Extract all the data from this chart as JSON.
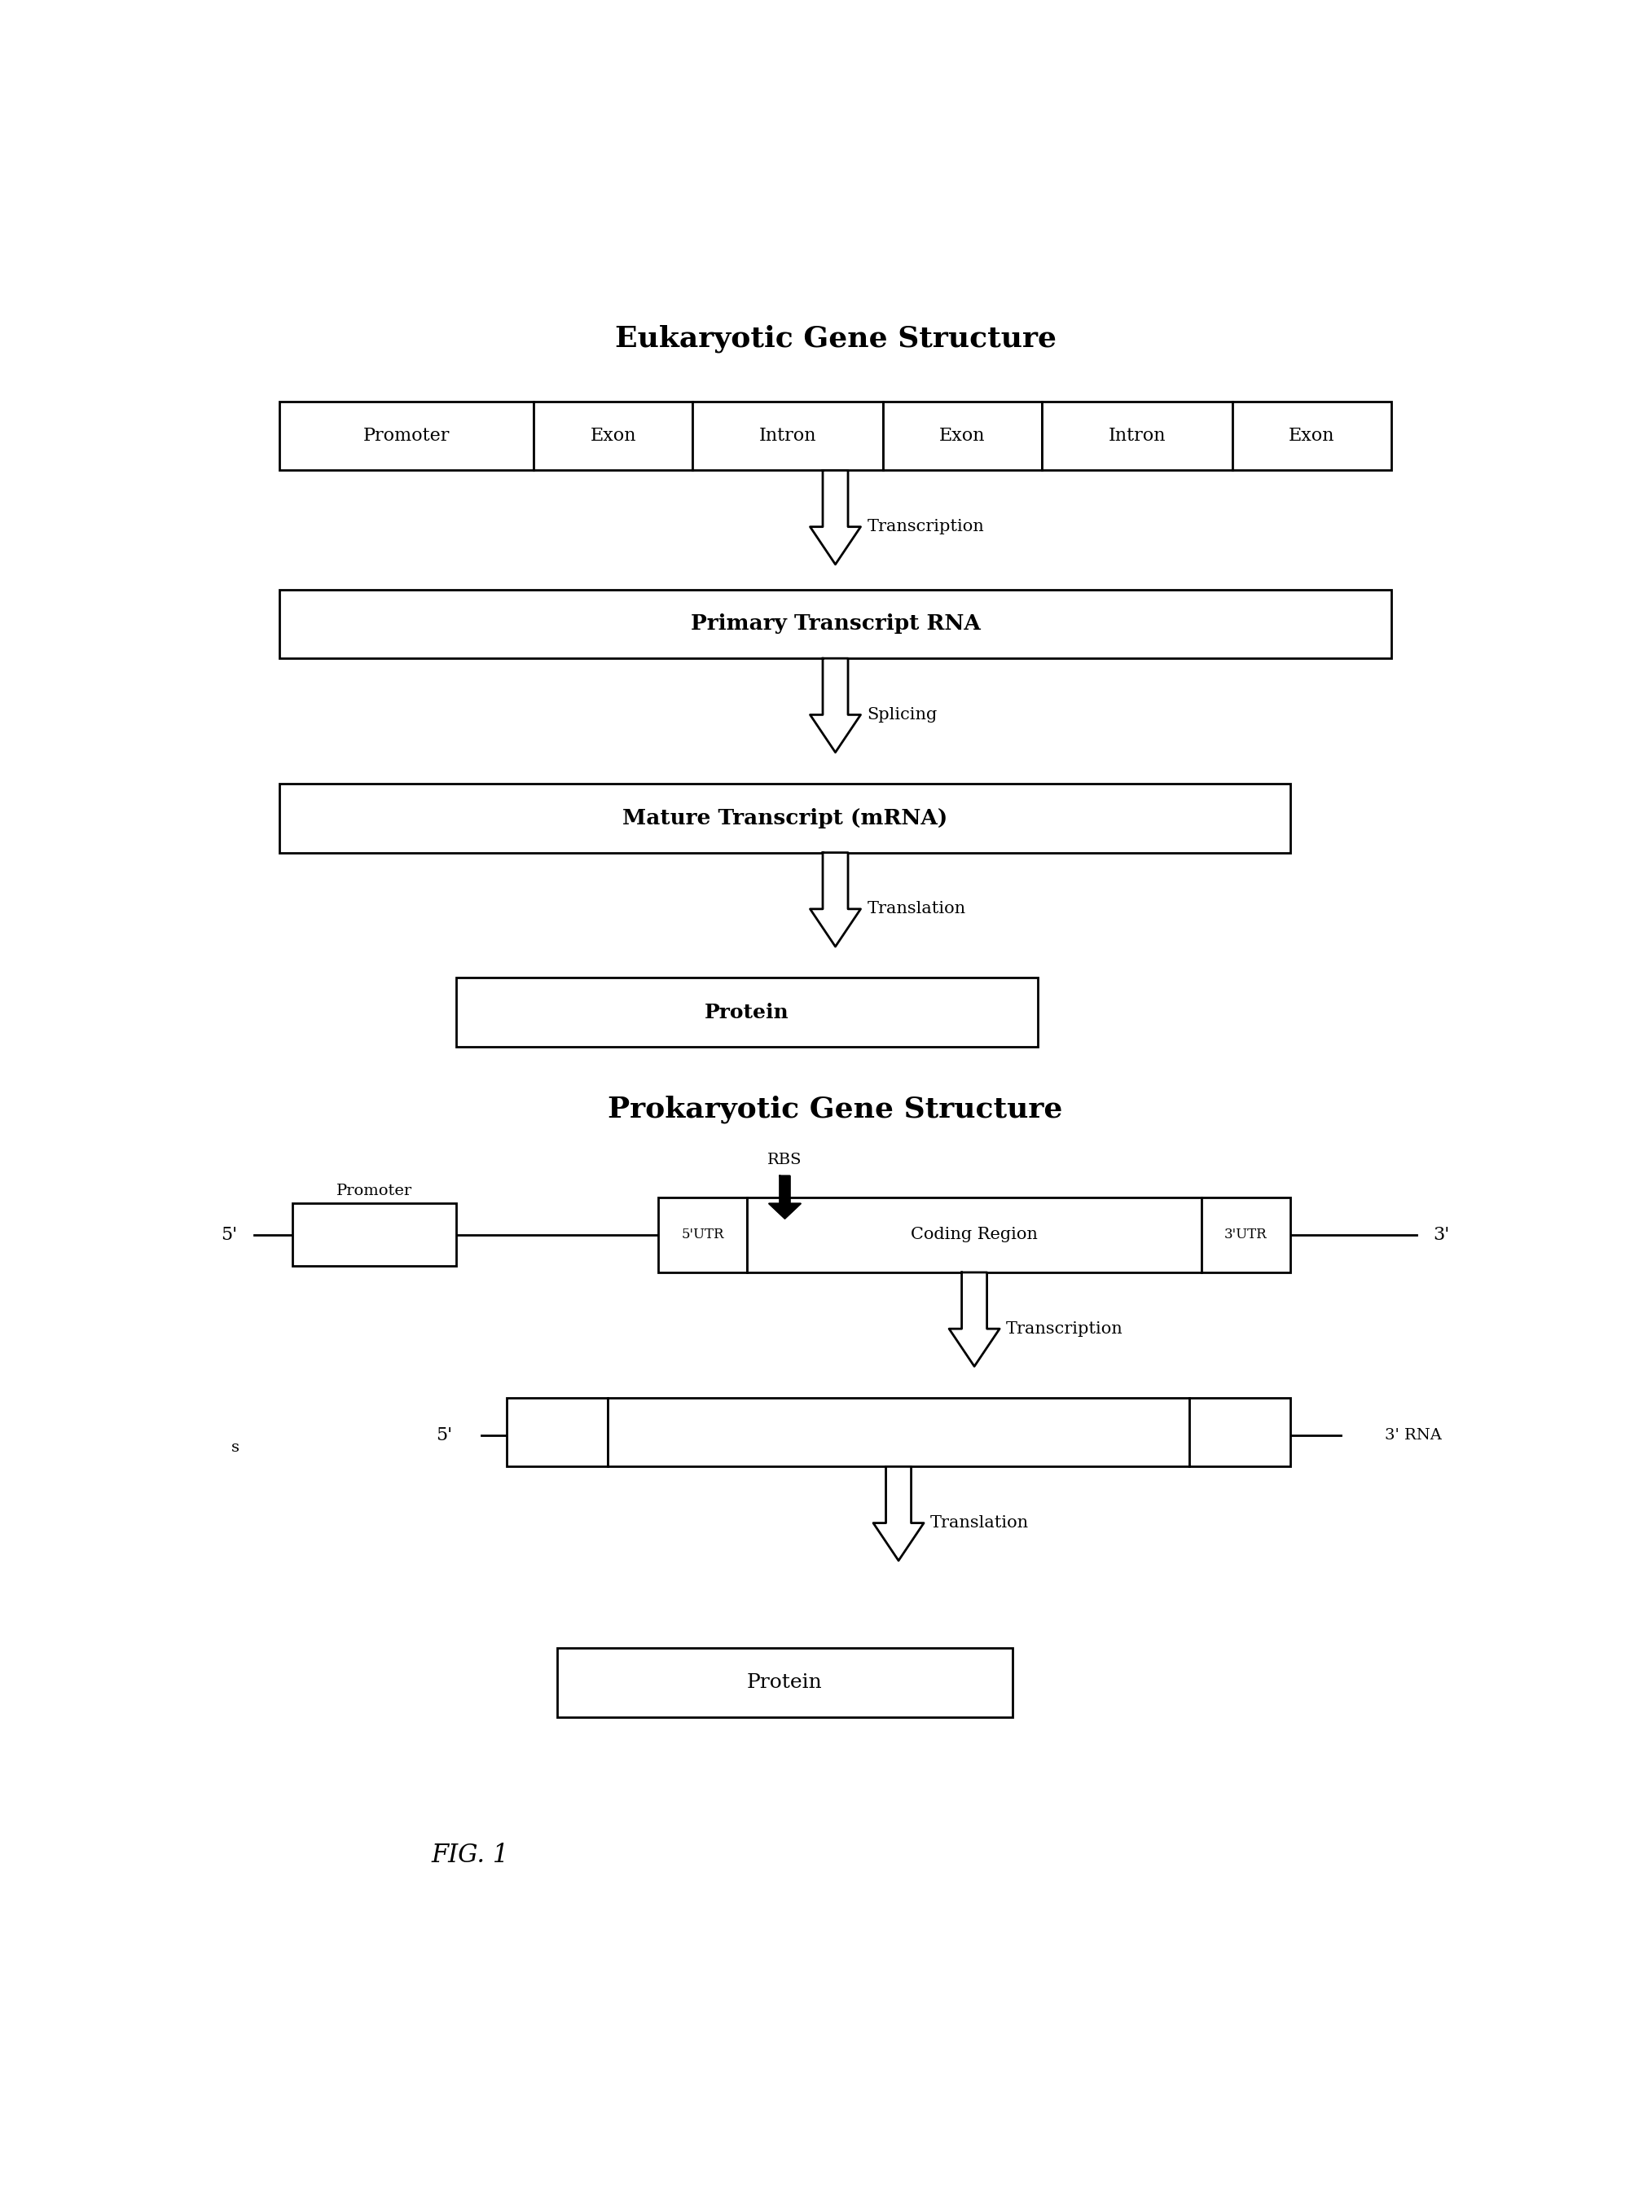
{
  "title1": "Eukaryotic Gene Structure",
  "title2": "Prokaryotic Gene Structure",
  "euk_boxes": [
    "Promoter",
    "Exon",
    "Intron",
    "Exon",
    "Intron",
    "Exon"
  ],
  "euk_box_widths": [
    1.6,
    1.0,
    1.2,
    1.0,
    1.2,
    1.0
  ],
  "label_primary_rna": "Primary Transcript RNA",
  "label_mature_mrna": "Mature Transcript (mRNA)",
  "label_protein1": "Protein",
  "label_protein2": "Protein",
  "label_transcription1": "Transcription",
  "label_splicing": "Splicing",
  "label_translation1": "Translation",
  "label_transcription2": "Transcription",
  "label_translation2": "Translation",
  "label_rbs": "RBS",
  "label_promoter": "Promoter",
  "label_5prime1": "5'",
  "label_3prime1": "3'",
  "label_5prime2": "5'",
  "label_3prime2": "3' RNA",
  "label_5utr": "5'UTR",
  "label_coding": "Coding Region",
  "label_3utr": "3'UTR",
  "label_s": "s",
  "fig_label": "FIG. 1",
  "bg_color": "#ffffff",
  "text_color": "#000000"
}
